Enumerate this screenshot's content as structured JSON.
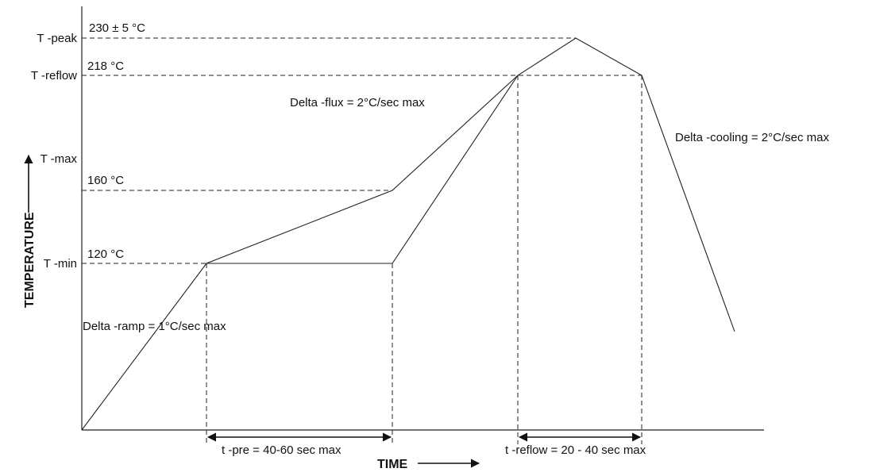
{
  "diagram": {
    "y_axis": {
      "title": "TEMPERATURE",
      "levels": {
        "t_peak": "T -peak",
        "t_reflow": "T -reflow",
        "t_max": "T -max",
        "t_min": "T -min"
      },
      "values": {
        "peak": "230 ± 5 °C",
        "reflow": "218  °C",
        "max": "160 °C",
        "min": "120 °C"
      }
    },
    "x_axis": {
      "title": "TIME"
    },
    "annotations": {
      "delta_flux": "Delta -flux =  2°C/sec max",
      "delta_cooling": "Delta -cooling =  2°C/sec max",
      "delta_ramp": "Delta -ramp =  1°C/sec max",
      "t_pre": "t -pre = 40-60 sec max",
      "t_reflow": "t -reflow = 20 - 40 sec max"
    }
  }
}
